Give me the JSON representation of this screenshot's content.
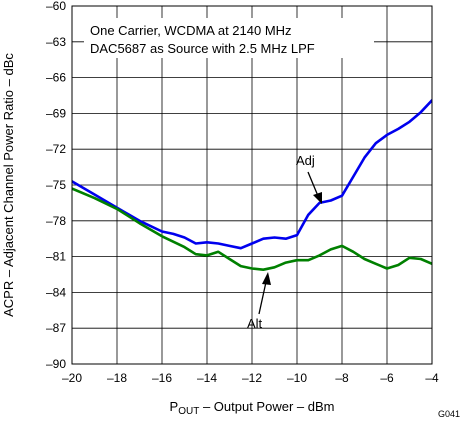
{
  "chart_data": {
    "type": "line",
    "xlabel_main": "P",
    "xlabel_sub": "OUT",
    "xlabel_rest": " – Output Power – dBm",
    "ylabel": "ACPR – Adjacent Channel Power Ratio – dBc",
    "xlim": [
      -20,
      -4
    ],
    "ylim": [
      -90,
      -60
    ],
    "x_ticks": [
      -20,
      -18,
      -16,
      -14,
      -12,
      -10,
      -8,
      -6,
      -4
    ],
    "y_ticks": [
      -60,
      -63,
      -66,
      -69,
      -72,
      -75,
      -78,
      -81,
      -84,
      -87,
      -90
    ],
    "x_tick_labels": [
      "–20",
      "–18",
      "–16",
      "–14",
      "–12",
      "–10",
      "–8",
      "–6",
      "–4"
    ],
    "y_tick_labels": [
      "–60",
      "–63",
      "–66",
      "–69",
      "–72",
      "–75",
      "–78",
      "–81",
      "–84",
      "–87",
      "–90"
    ],
    "grid": true,
    "annotations": {
      "line1": "One Carrier, WCDMA at 2140 MHz",
      "line2": "DAC5687 as Source with 2.5 MHz LPF",
      "adj_label": "Adj",
      "alt_label": "Alt"
    },
    "figure_id": "G041",
    "series": [
      {
        "key": "adj",
        "color": "#0000ee",
        "x": [
          -20,
          -19,
          -18,
          -17,
          -16,
          -15.5,
          -15,
          -14.5,
          -14,
          -13.5,
          -13,
          -12.5,
          -12,
          -11.5,
          -11,
          -10.5,
          -10,
          -9.5,
          -9,
          -8.5,
          -8,
          -7.5,
          -7,
          -6.5,
          -6,
          -5.5,
          -5,
          -4.5,
          -4
        ],
        "values": [
          -74.7,
          -75.8,
          -76.9,
          -78.0,
          -78.9,
          -79.1,
          -79.4,
          -79.9,
          -79.8,
          -79.9,
          -80.1,
          -80.3,
          -79.9,
          -79.5,
          -79.4,
          -79.5,
          -79.2,
          -77.5,
          -76.5,
          -76.3,
          -75.9,
          -74.3,
          -72.7,
          -71.5,
          -70.8,
          -70.3,
          -69.7,
          -68.9,
          -67.9
        ]
      },
      {
        "key": "alt",
        "color": "#008000",
        "x": [
          -20,
          -19,
          -18,
          -17,
          -16,
          -15,
          -14.5,
          -14,
          -13.5,
          -13,
          -12.5,
          -12,
          -11.5,
          -11,
          -10.5,
          -10,
          -9.5,
          -9,
          -8.5,
          -8,
          -7.5,
          -7,
          -6.5,
          -6,
          -5.5,
          -5,
          -4.5,
          -4
        ],
        "values": [
          -75.3,
          -76.1,
          -77.0,
          -78.2,
          -79.3,
          -80.2,
          -80.8,
          -80.9,
          -80.6,
          -81.2,
          -81.8,
          -82.0,
          -82.1,
          -81.9,
          -81.5,
          -81.3,
          -81.3,
          -80.9,
          -80.4,
          -80.1,
          -80.6,
          -81.2,
          -81.6,
          -82.0,
          -81.7,
          -81.1,
          -81.2,
          -81.6
        ]
      }
    ]
  }
}
